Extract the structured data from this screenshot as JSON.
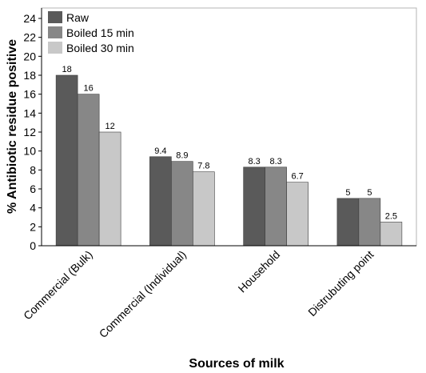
{
  "chart_data": {
    "type": "bar",
    "title": "",
    "xlabel": "Sources of milk",
    "ylabel": "% Antibiotic residue positive",
    "ylim": [
      0,
      24
    ],
    "ytick_step": 2,
    "grid": false,
    "legend_position": "top-left",
    "categories": [
      "Commercial (Bulk)",
      "Commercial (Individual)",
      "Household",
      "Distrubuting point"
    ],
    "series": [
      {
        "name": "Raw",
        "color": "#5a5a5a",
        "values": [
          18,
          9.4,
          8.3,
          5
        ],
        "labels": [
          "18",
          "9.4",
          "8.3",
          "5"
        ]
      },
      {
        "name": "Boiled 15 min",
        "color": "#878787",
        "values": [
          16,
          8.9,
          8.3,
          5
        ],
        "labels": [
          "16",
          "8.9",
          "8.3",
          "5"
        ]
      },
      {
        "name": "Boiled 30 min",
        "color": "#c8c8c8",
        "values": [
          12,
          7.8,
          6.7,
          2.5
        ],
        "labels": [
          "12",
          "7.8",
          "6.7",
          "2.5"
        ]
      }
    ]
  }
}
